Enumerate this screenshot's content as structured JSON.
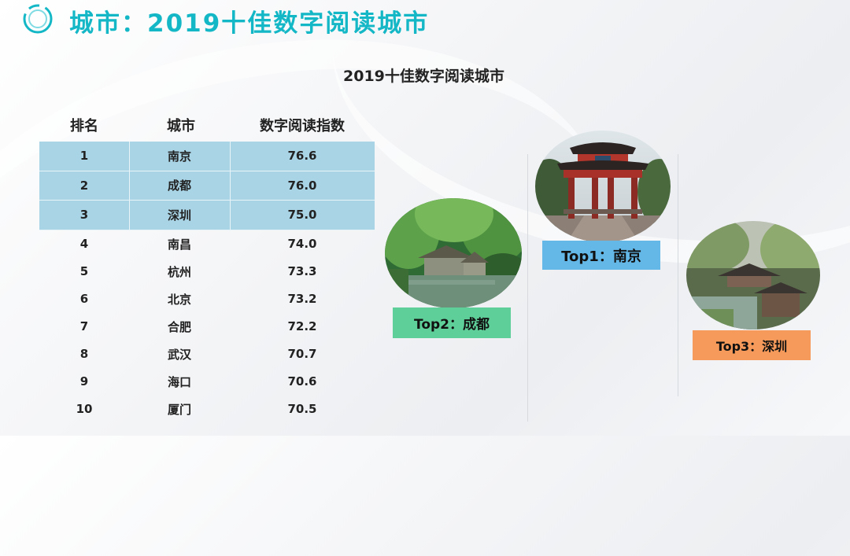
{
  "header": {
    "title": "城市：2019十佳数字阅读城市"
  },
  "table": {
    "title": "2019十佳数字阅读城市",
    "columns": [
      "排名",
      "城市",
      "数字阅读指数"
    ],
    "rows": [
      [
        "1",
        "南京",
        "76.6"
      ],
      [
        "2",
        "成都",
        "76.0"
      ],
      [
        "3",
        "深圳",
        "75.0"
      ],
      [
        "4",
        "南昌",
        "74.0"
      ],
      [
        "5",
        "杭州",
        "73.3"
      ],
      [
        "6",
        "北京",
        "73.2"
      ],
      [
        "7",
        "合肥",
        "72.2"
      ],
      [
        "8",
        "武汉",
        "70.7"
      ],
      [
        "9",
        "海口",
        "70.6"
      ],
      [
        "10",
        "厦门",
        "70.5"
      ]
    ]
  },
  "top_cards": [
    {
      "label": "Top1：南京",
      "color": "#63b8e8"
    },
    {
      "label": "Top2：成都",
      "color": "#5fcf9a"
    },
    {
      "label": "Top3：深圳",
      "color": "#f59a5a"
    }
  ],
  "colors": {
    "accent": "#14b7c6",
    "highlight_rows": "#a9d4e6"
  }
}
